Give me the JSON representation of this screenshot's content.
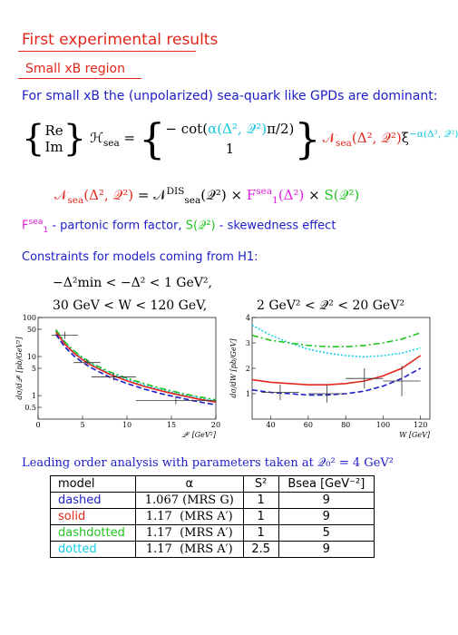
{
  "title": "First experimental results",
  "subtitle": "Small xB region",
  "intro": "For small xB the (unpolarized) sea-quark like GPDs are dominant:",
  "formula1": {
    "stack": [
      "Re",
      "Im"
    ],
    "lhs": [
      {
        "text": "ℋ",
        "color": "#000000"
      },
      {
        "text": "sea",
        "color": "#000000",
        "sub": true
      },
      {
        "text": " =",
        "color": "#000000"
      }
    ],
    "cases": [
      [
        {
          "text": "− cot(",
          "color": "#000000"
        },
        {
          "text": "α(Δ², 𝒬²)",
          "color": "#14c8e0"
        },
        {
          "text": "π/2)",
          "color": "#000000"
        }
      ],
      [
        {
          "text": "1",
          "color": "#000000"
        }
      ]
    ],
    "rhs": [
      {
        "text": "𝒩",
        "color": "#e3261c"
      },
      {
        "text": "sea",
        "color": "#e3261c",
        "sub": true
      },
      {
        "text": "(Δ², 𝒬²)",
        "color": "#e3261c"
      },
      {
        "text": "ξ",
        "color": "#000000"
      },
      {
        "text": "−α(Δ², 𝒬²)",
        "color": "#14c8e0",
        "sup": true
      }
    ]
  },
  "formula2": [
    {
      "text": "𝒩",
      "color": "#e3261c"
    },
    {
      "text": "sea",
      "color": "#e3261c",
      "sub": true
    },
    {
      "text": "(Δ², 𝒬²)",
      "color": "#e3261c"
    },
    {
      "text": " = 𝒩",
      "color": "#000000"
    },
    {
      "text": "DIS",
      "color": "#000000",
      "sup": true
    },
    {
      "text": "sea",
      "color": "#000000",
      "sub": true
    },
    {
      "text": "(𝒬²) × ",
      "color": "#000000"
    },
    {
      "text": "F",
      "color": "#e020e0"
    },
    {
      "text": "sea",
      "color": "#e020e0",
      "sup": true
    },
    {
      "text": "1",
      "color": "#e020e0",
      "sub": true
    },
    {
      "text": "(Δ²)",
      "color": "#e020e0"
    },
    {
      "text": " × ",
      "color": "#000000"
    },
    {
      "text": "S(𝒬²)",
      "color": "#22c422"
    }
  ],
  "legend_line": [
    {
      "text": "F",
      "color": "#e020e0"
    },
    {
      "text": "sea",
      "color": "#e020e0",
      "sup": true
    },
    {
      "text": "1",
      "color": "#e020e0",
      "sub": true
    },
    {
      "text": " - partonic form factor, ",
      "color": "#1c1cc8"
    },
    {
      "text": "S(𝒬²)",
      "color": "#22c422"
    },
    {
      "text": " - skewedness effect",
      "color": "#1c1cc8"
    }
  ],
  "constraints_heading": "Constraints for models coming from H1:",
  "constraints": [
    "−Δ²min < −Δ² < 1 GeV²,",
    "30 GeV < W < 120 GeV,",
    "2 GeV² < 𝒬² < 20 GeV²"
  ],
  "chart_data": [
    {
      "type": "line",
      "x_label": "𝒬² [GeV²]",
      "y_label": "dσ/d𝒬² [pb/GeV²]",
      "log_y": true,
      "xlim": [
        0,
        20
      ],
      "ylim": [
        0.25,
        100
      ],
      "xticks": [
        0,
        5,
        10,
        15,
        20
      ],
      "yticks": [
        0.5,
        1,
        5,
        10,
        50,
        100
      ],
      "x": [
        2,
        3,
        4,
        5,
        6,
        8,
        10,
        12,
        14,
        16,
        18,
        20
      ],
      "series": [
        {
          "name": "dotted",
          "color": "#14d0e6",
          "dash": "dotted",
          "values": [
            46,
            22.5,
            13.4,
            9.0,
            6.4,
            3.8,
            2.6,
            1.85,
            1.4,
            1.1,
            0.89,
            0.73
          ]
        },
        {
          "name": "dashdotted",
          "color": "#22c422",
          "dash": "dashdot",
          "values": [
            49,
            24,
            14.3,
            9.5,
            6.8,
            4.1,
            2.8,
            2.0,
            1.5,
            1.17,
            0.94,
            0.78
          ]
        },
        {
          "name": "solid",
          "color": "#e3261c",
          "dash": "solid",
          "values": [
            43,
            20.8,
            12.4,
            8.3,
            5.95,
            3.55,
            2.4,
            1.71,
            1.3,
            1.02,
            0.82,
            0.68
          ]
        },
        {
          "name": "dashed",
          "color": "#1c1cc8",
          "dash": "dashed",
          "values": [
            37,
            17.7,
            10.5,
            7.1,
            5.1,
            3.0,
            2.05,
            1.45,
            1.1,
            0.87,
            0.7,
            0.58
          ]
        }
      ],
      "points": {
        "x": [
          3,
          5.5,
          8.5,
          15.5
        ],
        "y": [
          35,
          7,
          3,
          0.75
        ],
        "xerr": [
          1.5,
          1.5,
          2.5,
          4.5
        ]
      }
    },
    {
      "type": "line",
      "x_label": "W [GeV]",
      "y_label": "dσ/dW [pb/GeV]",
      "log_y": false,
      "xlim": [
        30,
        125
      ],
      "ylim": [
        0,
        4
      ],
      "xticks": [
        40,
        60,
        80,
        100,
        120
      ],
      "yticks": [
        1,
        2,
        3,
        4
      ],
      "x": [
        30,
        40,
        50,
        60,
        70,
        80,
        90,
        100,
        110,
        120
      ],
      "series": [
        {
          "name": "dotted",
          "color": "#14d0e6",
          "dash": "dotted",
          "values": [
            3.7,
            3.3,
            3.0,
            2.75,
            2.6,
            2.5,
            2.45,
            2.5,
            2.6,
            2.8
          ]
        },
        {
          "name": "dashdotted",
          "color": "#22c422",
          "dash": "dashdot",
          "values": [
            3.3,
            3.1,
            3.0,
            2.9,
            2.85,
            2.85,
            2.9,
            3.0,
            3.15,
            3.4
          ]
        },
        {
          "name": "solid",
          "color": "#e3261c",
          "dash": "solid",
          "values": [
            1.55,
            1.45,
            1.4,
            1.35,
            1.35,
            1.4,
            1.5,
            1.7,
            2.0,
            2.5
          ]
        },
        {
          "name": "dashed",
          "color": "#1c1cc8",
          "dash": "dashed",
          "values": [
            1.15,
            1.05,
            1.0,
            0.95,
            0.95,
            1.0,
            1.1,
            1.3,
            1.6,
            2.0
          ]
        }
      ],
      "points": {
        "x": [
          45,
          70,
          90,
          110
        ],
        "y": [
          1.05,
          1.0,
          1.6,
          1.5
        ],
        "xerr": [
          10,
          10,
          10,
          10
        ],
        "yerr": [
          0.3,
          0.35,
          0.4,
          0.6
        ]
      }
    }
  ],
  "table_caption": "Leading order analysis with parameters taken at 𝒬₀² = 4 GeV²",
  "table": {
    "header": [
      "model",
      "α",
      "S²",
      "Bsea [GeV⁻²]"
    ],
    "row_colors": [
      "#1c1cc8",
      "#e3261c",
      "#22c422",
      "#14d0e6"
    ],
    "rows": [
      [
        "dashed",
        "1.067 (MRS G)",
        "1",
        "9"
      ],
      [
        "solid",
        "1.17  (MRS A′)",
        "1",
        "9"
      ],
      [
        "dashdotted",
        "1.17  (MRS A′)",
        "1",
        "5"
      ],
      [
        "dotted",
        "1.17  (MRS A′)",
        "2.5",
        "9"
      ]
    ]
  }
}
